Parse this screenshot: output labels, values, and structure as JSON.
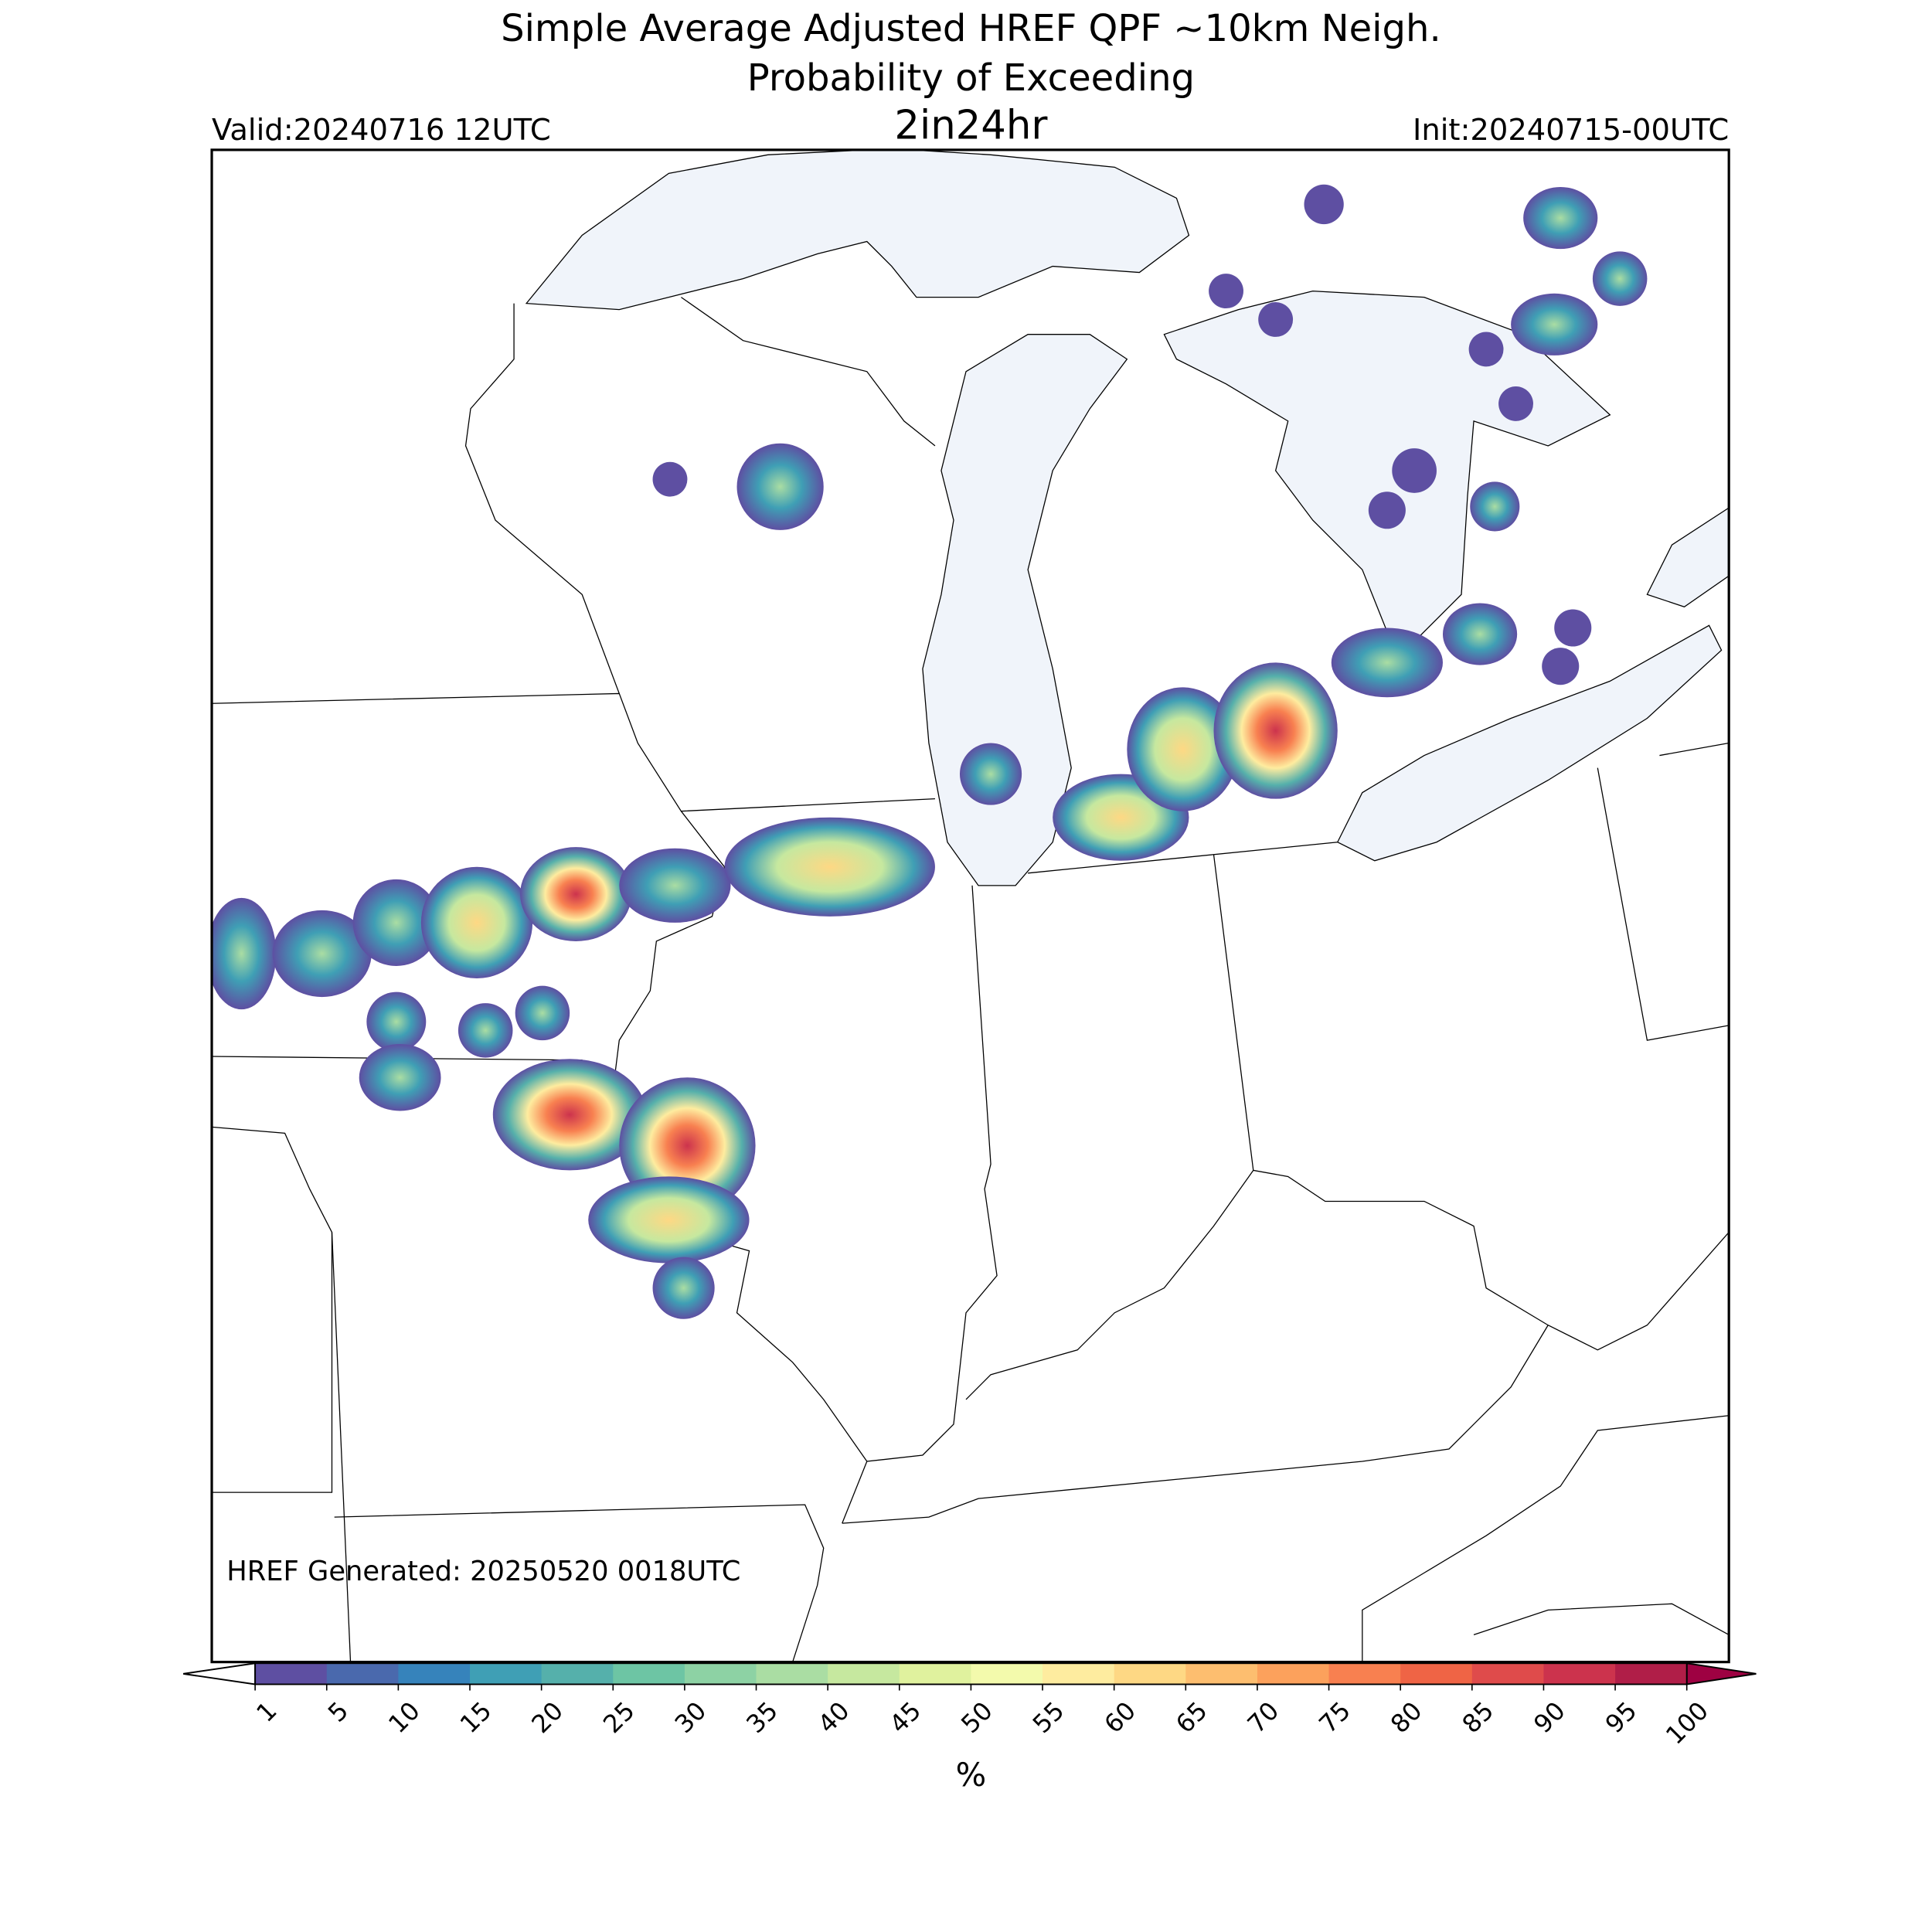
{
  "title": [
    "Simple Average Adjusted HREF QPF ~10km Neigh.",
    "Probability of Exceeding"
  ],
  "threshold": "2in24hr",
  "valid": "Valid:20240716 12UTC",
  "init": "Init:20240715-00UTC",
  "generated": "HREF Generated: 20250520 0018UTC",
  "colorbar": {
    "label": "%",
    "ticks": [
      1,
      5,
      10,
      15,
      20,
      25,
      30,
      35,
      40,
      45,
      50,
      55,
      60,
      65,
      70,
      75,
      80,
      85,
      90,
      95,
      100
    ],
    "colors": [
      "#5e4fa2",
      "#4a69ad",
      "#3683bb",
      "#3f9fb5",
      "#55b0ab",
      "#6dc5a4",
      "#8dd2a4",
      "#aadda3",
      "#c6e89f",
      "#e0f29e",
      "#f3faac",
      "#feec9f",
      "#fed884",
      "#fdbe6f",
      "#fca15c",
      "#f88050",
      "#ef6445",
      "#df4b4b",
      "#cc334d",
      "#b01e48"
    ],
    "over_color": "#9e0142"
  }
}
